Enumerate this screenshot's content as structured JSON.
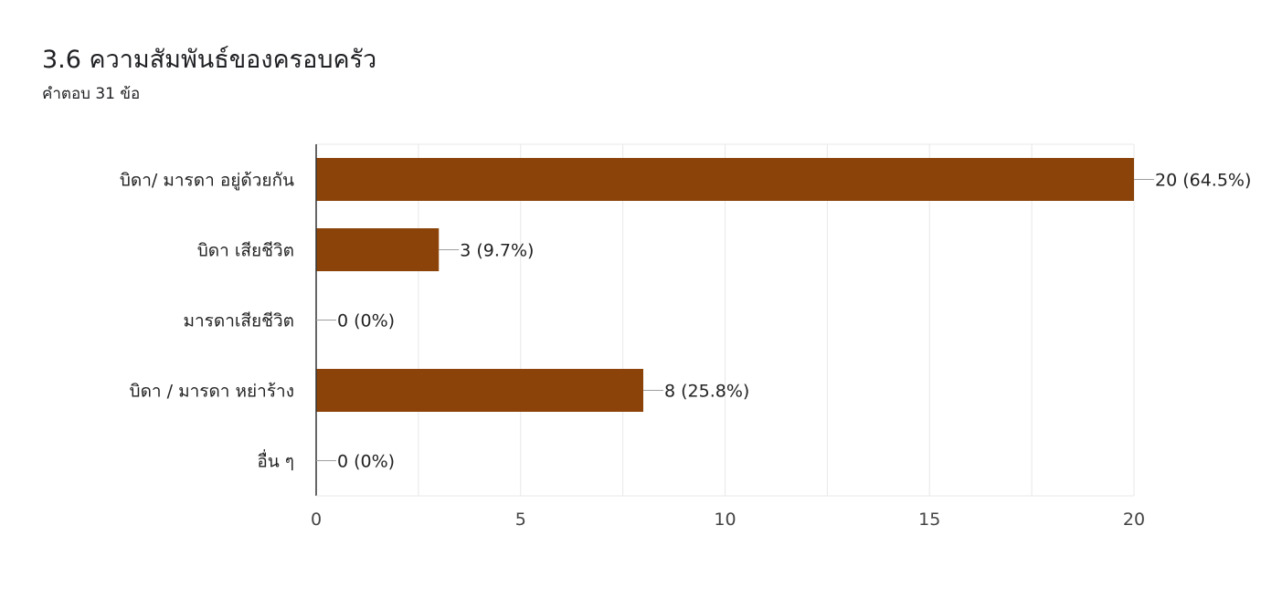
{
  "header": {
    "title": "3.6 ความสัมพันธ์ของครอบครัว",
    "response_count": "คำตอบ 31 ข้อ"
  },
  "colors": {
    "bar": "#8b4309",
    "grid": "#e8e8e8",
    "axis": "#333333",
    "leader": "#9e9e9e",
    "text": "#222222"
  },
  "chart_data": {
    "type": "bar",
    "orientation": "horizontal",
    "title": "3.6 ความสัมพันธ์ของครอบครัว",
    "categories": [
      "บิดา/ มารดา อยู่ด้วยกัน",
      "บิดา เสียชีวิต",
      "มารดาเสียชีวิต",
      "บิดา / มารดา หย่าร้าง",
      "อื่น ๆ"
    ],
    "values": [
      20,
      3,
      0,
      8,
      0
    ],
    "data_labels": [
      "20 (64.5%)",
      "3 (9.7%)",
      "0 (0%)",
      "8 (25.8%)",
      "0 (0%)"
    ],
    "xlim": [
      0,
      20
    ],
    "xticks": [
      0,
      5,
      10,
      15,
      20
    ],
    "grid": true,
    "legend": "none"
  }
}
